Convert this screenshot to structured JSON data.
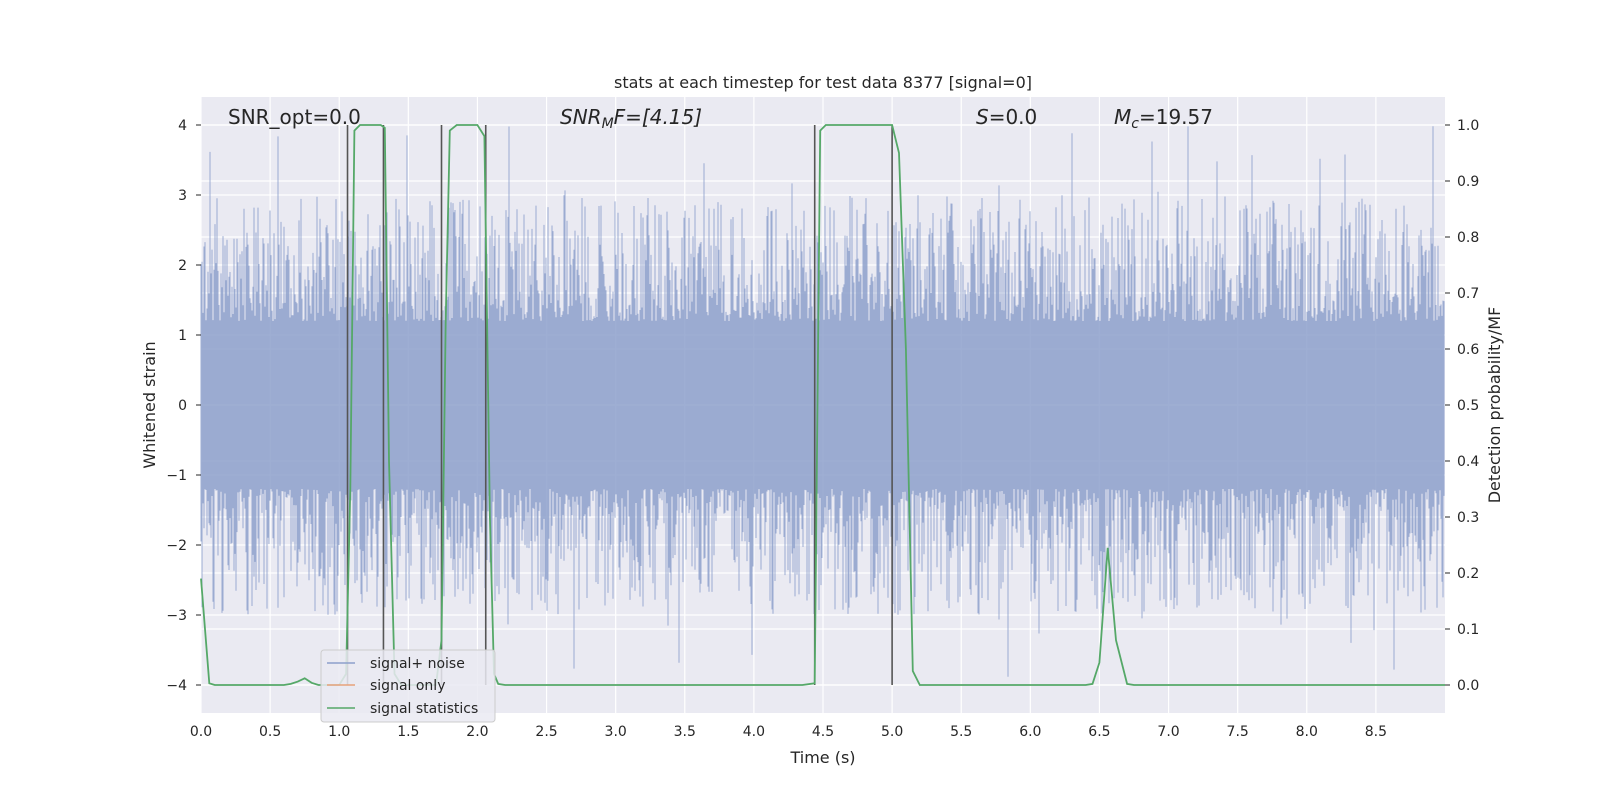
{
  "chart_data": {
    "type": "line",
    "title": "stats at each timestep for test data 8377 [signal=0]",
    "xlabel": "Time (s)",
    "ylabel": "Whitened strain",
    "ylabel_right": "Detection probability/MF",
    "xlim": [
      0.0,
      9.0
    ],
    "ylim": [
      -4.4,
      4.4
    ],
    "ylim_right": [
      -0.05,
      1.05
    ],
    "x_ticks": [
      "0.0",
      "0.5",
      "1.0",
      "1.5",
      "2.0",
      "2.5",
      "3.0",
      "3.5",
      "4.0",
      "4.5",
      "5.0",
      "5.5",
      "6.0",
      "6.5",
      "7.0",
      "7.5",
      "8.0",
      "8.5"
    ],
    "y_ticks": [
      "4",
      "3",
      "2",
      "1",
      "0",
      "−1",
      "−2",
      "−3",
      "−4"
    ],
    "y_ticks_right": [
      "1.0",
      "0.9",
      "0.8",
      "0.7",
      "0.6",
      "0.5",
      "0.4",
      "0.3",
      "0.2",
      "0.1",
      "0.0"
    ],
    "grid": true,
    "annotations": {
      "snr_opt": "SNR_opt=0.0",
      "snr_mf_main": "SNR",
      "snr_mf_sub": "M",
      "snr_mf_rest": "F=[4.15]",
      "s_main": "S",
      "s_rest": "=0.0",
      "mc_main": "M",
      "mc_sub": "c",
      "mc_rest": "=19.57"
    },
    "legend": {
      "placement": "lower-left",
      "entries": [
        "signal+ noise",
        "signal only",
        "signal statistics"
      ]
    },
    "colors": {
      "noise": "#8da0cb",
      "signal_only": "#e6a17a",
      "statistics": "#55a868",
      "markers": "#555555",
      "background": "#eaeaf2"
    },
    "series": [
      {
        "name": "signal statistics",
        "axis": "right",
        "x": [
          0.0,
          0.06,
          0.1,
          0.15,
          0.2,
          0.3,
          0.4,
          0.5,
          0.6,
          0.65,
          0.7,
          0.75,
          0.8,
          0.85,
          0.9,
          0.95,
          1.0,
          1.05,
          1.08,
          1.11,
          1.15,
          1.2,
          1.25,
          1.3,
          1.33,
          1.36,
          1.4,
          1.45,
          1.5,
          1.6,
          1.7,
          1.74,
          1.77,
          1.8,
          1.85,
          1.9,
          1.95,
          2.0,
          2.05,
          2.09,
          2.12,
          2.15,
          2.2,
          2.3,
          2.5,
          3.0,
          3.5,
          4.0,
          4.35,
          4.44,
          4.48,
          4.52,
          4.6,
          4.8,
          4.95,
          5.0,
          5.05,
          5.1,
          5.15,
          5.2,
          5.3,
          5.5,
          6.0,
          6.4,
          6.45,
          6.5,
          6.56,
          6.62,
          6.7,
          6.75,
          7.0,
          8.0,
          9.0
        ],
        "y": [
          0.19,
          0.003,
          0.0,
          0.0,
          0.0,
          0.0,
          0.0,
          0.0,
          0.0,
          0.002,
          0.006,
          0.012,
          0.004,
          0.0,
          0.0,
          0.0,
          0.0,
          0.02,
          0.35,
          0.99,
          1.0,
          1.0,
          1.0,
          1.0,
          0.995,
          0.4,
          0.02,
          0.0,
          0.0,
          0.0,
          0.0,
          0.08,
          0.65,
          0.99,
          1.0,
          1.0,
          1.0,
          1.0,
          0.98,
          0.3,
          0.02,
          0.002,
          0.0,
          0.0,
          0.0,
          0.0,
          0.0,
          0.0,
          0.0,
          0.003,
          0.99,
          1.0,
          1.0,
          1.0,
          1.0,
          1.0,
          0.95,
          0.6,
          0.025,
          0.0,
          0.0,
          0.0,
          0.0,
          0.0,
          0.002,
          0.04,
          0.245,
          0.08,
          0.002,
          0.0,
          0.0,
          0.0,
          0.0
        ]
      }
    ],
    "noise_envelope": {
      "name": "signal+ noise",
      "axis": "left",
      "typical_upper": 2.4,
      "typical_lower": -2.4,
      "peak_max": 4.0,
      "peak_min": -4.0
    },
    "event_markers_x": [
      1.06,
      1.32,
      1.74,
      2.06,
      4.44,
      5.0
    ]
  }
}
